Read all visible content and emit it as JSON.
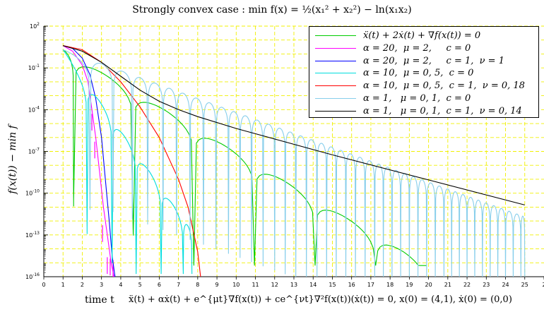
{
  "chart_data": {
    "type": "line",
    "title": "Strongly convex case : min f(x) = ½(x₁² + x₂²) − ln(x₁x₂)",
    "xlabel": "time t",
    "ylabel": "f(x(t)) − min f",
    "subtitle": "ẍ(t) + αẋ(t) + e^{μt}∇f(x(t)) + ce^{νt}∇²f(x(t))(ẋ(t)) = 0, x(0) = (4,1), ẋ(0) = (0,0)",
    "xlim": [
      0,
      26
    ],
    "ylim_log10": [
      -16,
      2
    ],
    "y_scale": "log",
    "grid": true,
    "legend_position": "top-right",
    "xticks": [
      "0",
      "1",
      "2",
      "3",
      "4",
      "5",
      "6",
      "7",
      "8",
      "9",
      "10",
      "11",
      "12",
      "13",
      "14",
      "15",
      "16",
      "17",
      "18",
      "19",
      "20",
      "21",
      "22",
      "23",
      "24",
      "25",
      "2"
    ],
    "yticks": [
      {
        "base": "10",
        "exp": "2",
        "log10": 2
      },
      {
        "base": "10",
        "exp": "-1",
        "log10": -1
      },
      {
        "base": "10",
        "exp": "-4",
        "log10": -4
      },
      {
        "base": "10",
        "exp": "-7",
        "log10": -7
      },
      {
        "base": "10",
        "exp": "-10",
        "log10": -10
      },
      {
        "base": "10",
        "exp": "-13",
        "log10": -13
      },
      {
        "base": "10",
        "exp": "-16",
        "log10": -16
      }
    ],
    "series": [
      {
        "name": "ẍ(t) + 2ẋ(t) + ∇f(x(t)) = 0",
        "color": "#00cc00",
        "kind": "oscillating",
        "start": 1,
        "end": 19.9,
        "upper": [
          0.3,
          -0.82
        ],
        "dips": [
          1.55,
          4.65,
          7.8,
          10.95,
          14.1,
          17.25
        ],
        "dip_floor": -15.2
      },
      {
        "name": "α = 20,  μ = 2,     c = 0",
        "color": "#ff00ff",
        "kind": "spiky",
        "points": [
          [
            1,
            0.6
          ],
          [
            1.5,
            0.2
          ],
          [
            2,
            -0.8
          ],
          [
            2.3,
            -2
          ],
          [
            2.5,
            -4
          ],
          [
            2.7,
            -6
          ],
          [
            2.9,
            -8.5
          ],
          [
            3.1,
            -11
          ],
          [
            3.3,
            -13
          ],
          [
            3.5,
            -15
          ],
          [
            3.65,
            -16
          ]
        ],
        "spikes": [
          [
            2.5,
            -5.5
          ],
          [
            2.65,
            -7.5
          ],
          [
            3.05,
            -13.5
          ],
          [
            3.3,
            -15.8
          ],
          [
            3.45,
            -15.9
          ],
          [
            3.6,
            -16
          ]
        ]
      },
      {
        "name": "α = 20,  μ = 2,     c = 1,  ν = 1",
        "color": "#0000ff",
        "kind": "smooth",
        "points": [
          [
            1,
            0.6
          ],
          [
            1.5,
            0.4
          ],
          [
            2,
            -0.3
          ],
          [
            2.4,
            -1.5
          ],
          [
            2.7,
            -3.2
          ],
          [
            3.0,
            -6
          ],
          [
            3.2,
            -9
          ],
          [
            3.4,
            -12
          ],
          [
            3.55,
            -14.5
          ],
          [
            3.7,
            -16
          ]
        ]
      },
      {
        "name": "α = 10,  μ = 0, 5,  c = 0",
        "color": "#00dddd",
        "kind": "oscillating",
        "start": 1,
        "end": 7.7,
        "upper": [
          0.3,
          -1.95
        ],
        "dips": [
          2.25,
          3.55,
          4.8,
          6.1,
          7.25
        ],
        "dip_floor": -15.8,
        "curv": 0.02
      },
      {
        "name": "α = 10,  μ = 0, 5,  c = 1,  ν = 0, 18",
        "color": "#ff0000",
        "kind": "smooth",
        "points": [
          [
            1,
            0.6
          ],
          [
            2,
            0.3
          ],
          [
            3,
            -0.6
          ],
          [
            4,
            -2
          ],
          [
            5,
            -3.8
          ],
          [
            6,
            -6
          ],
          [
            7,
            -9
          ],
          [
            7.5,
            -11
          ],
          [
            8,
            -14.2
          ],
          [
            8.15,
            -16
          ]
        ]
      },
      {
        "name": "α = 1,   μ = 0, 1,  c = 0",
        "color": "#87ceeb",
        "kind": "oscillating",
        "start": 1,
        "end": 25,
        "upper": [
          0.3,
          -0.5
        ],
        "dips": [
          2.4,
          3.6,
          4.6,
          5.4,
          6.2,
          6.9,
          7.6,
          8.3,
          8.95,
          9.6,
          10.2,
          10.8,
          11.4,
          12.0,
          12.55,
          13.1,
          13.65,
          14.2,
          14.7,
          15.2,
          15.7,
          16.2,
          16.7,
          17.2,
          17.65,
          18.1,
          18.55,
          19.0,
          19.45,
          19.9,
          20.35,
          20.8,
          21.2,
          21.6,
          22.0,
          22.4,
          22.8,
          23.2,
          23.6,
          24.0,
          24.4,
          24.8
        ],
        "dip_floor": -16,
        "curv": 0.0
      },
      {
        "name": "α = 1,   μ = 0, 1,  c = 1,  ν = 0, 14",
        "color": "#000000",
        "kind": "smooth",
        "points": [
          [
            1,
            0.6
          ],
          [
            2,
            0.2
          ],
          [
            3,
            -0.6
          ],
          [
            4,
            -1.6
          ],
          [
            5,
            -2.6
          ],
          [
            6,
            -3.4
          ],
          [
            7,
            -4.0
          ],
          [
            8,
            -4.5
          ],
          [
            10,
            -5.35
          ],
          [
            15,
            -7.25
          ],
          [
            20,
            -9.05
          ],
          [
            25,
            -10.85
          ]
        ]
      }
    ]
  }
}
